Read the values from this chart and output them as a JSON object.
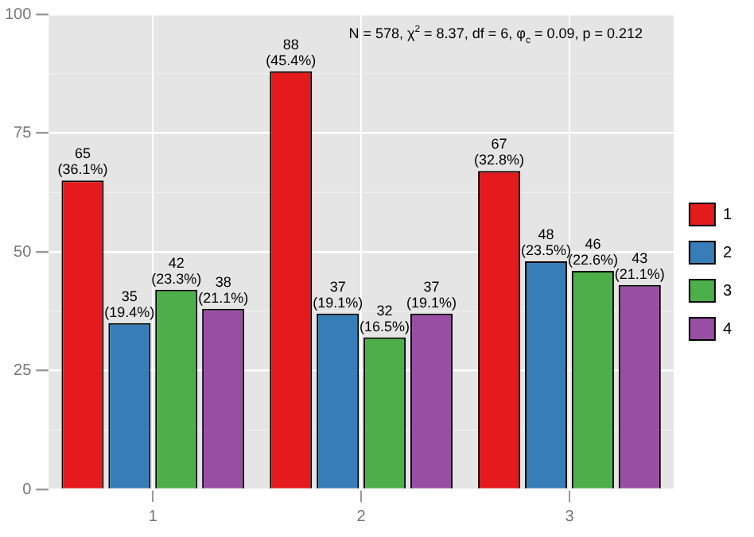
{
  "chart_data": {
    "type": "bar",
    "annotations": [
      "N = 578, χ$^{2}$ = 8.37, df = 6, φ$_{c}$ = 0.09, p = 0.212"
    ],
    "categories": [
      "1",
      "2",
      "3"
    ],
    "series": [
      {
        "name": "1",
        "color": "#e41a1c",
        "values": [
          65,
          88,
          67
        ],
        "value_labels": [
          "65\n(36.1%)",
          "88\n(45.4%)",
          "67\n(32.8%)"
        ]
      },
      {
        "name": "2",
        "color": "#377eb8",
        "values": [
          35,
          37,
          48
        ],
        "value_labels": [
          "35\n(19.4%)",
          "37\n(19.1%)",
          "48\n(23.5%)"
        ]
      },
      {
        "name": "3",
        "color": "#4daf4a",
        "values": [
          42,
          32,
          46
        ],
        "value_labels": [
          "42\n(23.3%)",
          "32\n(16.5%)",
          "46\n(22.6%)"
        ]
      },
      {
        "name": "4",
        "color": "#984ea3",
        "values": [
          38,
          37,
          43
        ],
        "value_labels": [
          "38\n(21.1%)",
          "37\n(19.1%)",
          "43\n(21.1%)"
        ]
      }
    ],
    "ylim": [
      0,
      100
    ],
    "yticks": [
      0,
      25,
      50,
      75,
      100
    ],
    "grid": true,
    "legend": "right"
  }
}
